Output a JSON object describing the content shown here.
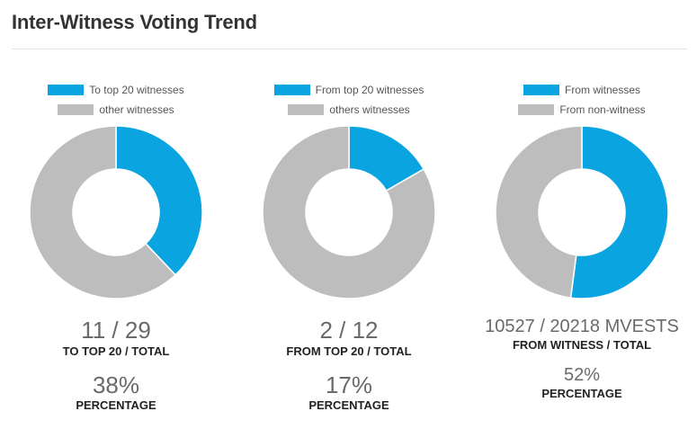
{
  "title": "Inter-Witness Voting Trend",
  "colors": {
    "primary": "#0aa5e0",
    "secondary": "#bdbdbd"
  },
  "panels": [
    {
      "legend": [
        "To top 20 witnesses",
        "other witnesses"
      ],
      "ratio": "11 / 29",
      "ratio_label": "TO TOP 20 / TOTAL",
      "percent": "38%",
      "percent_label": "PERCENTAGE"
    },
    {
      "legend": [
        "From top 20 witnesses",
        "others witnesses"
      ],
      "ratio": "2 / 12",
      "ratio_label": "FROM TOP 20 / TOTAL",
      "percent": "17%",
      "percent_label": "PERCENTAGE"
    },
    {
      "legend": [
        "From witnesses",
        "From non-witness"
      ],
      "ratio": "10527 / 20218 MVESTS",
      "ratio_label": "FROM WITNESS / TOTAL",
      "percent": "52%",
      "percent_label": "PERCENTAGE"
    }
  ],
  "chart_data": [
    {
      "type": "pie",
      "variant": "donut",
      "categories": [
        "To top 20 witnesses",
        "other witnesses"
      ],
      "values": [
        11,
        18
      ]
    },
    {
      "type": "pie",
      "variant": "donut",
      "categories": [
        "From top 20 witnesses",
        "others witnesses"
      ],
      "values": [
        2,
        10
      ]
    },
    {
      "type": "pie",
      "variant": "donut",
      "categories": [
        "From witnesses",
        "From non-witness"
      ],
      "values": [
        10527,
        9691
      ]
    }
  ]
}
